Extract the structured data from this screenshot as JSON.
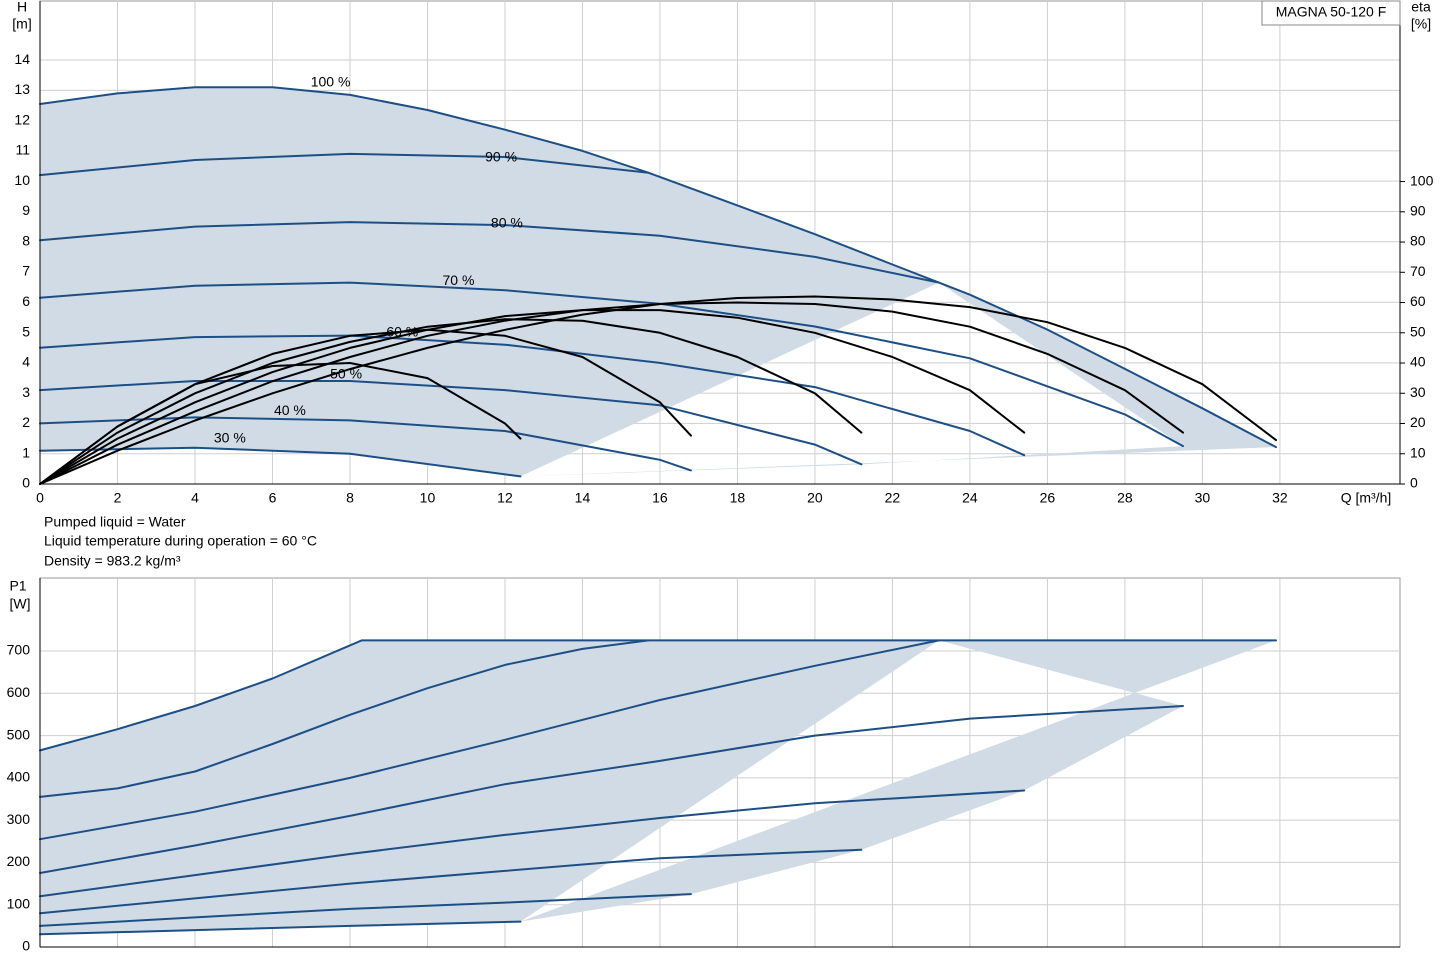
{
  "chart_data": [
    {
      "type": "line",
      "model_label": "MAGNA 50-120 F",
      "ylabel": "H",
      "yunit": "[m]",
      "y2label": "eta",
      "y2unit": "[%]",
      "xlabel": "Q [m³/h]",
      "notes": [
        "Pumped liquid = Water",
        "Liquid temperature during operation = 60 °C",
        "Density = 983.2 kg/m³"
      ],
      "xlim": [
        0,
        35.1
      ],
      "xticks": [
        0,
        2,
        4,
        6,
        8,
        10,
        12,
        14,
        16,
        18,
        20,
        22,
        24,
        26,
        28,
        30,
        32
      ],
      "ylim": [
        0,
        15.95
      ],
      "yticks": [
        0,
        1,
        2,
        3,
        4,
        5,
        6,
        7,
        8,
        9,
        10,
        11,
        12,
        13,
        14
      ],
      "y2lim": [
        0,
        159.7
      ],
      "y2ticks": [
        0,
        10,
        20,
        30,
        40,
        50,
        60,
        70,
        80,
        90,
        100
      ],
      "grid": true,
      "fill_color": "#d0dbe6",
      "series": [
        {
          "name": "100 %",
          "color": "#1d4f86",
          "x": [
            0,
            2,
            4,
            6,
            8,
            10,
            12,
            14,
            15.7,
            18,
            20,
            22,
            23.2,
            24,
            26,
            28,
            30,
            31.9
          ],
          "values": [
            12.55,
            12.9,
            13.1,
            13.1,
            12.85,
            12.35,
            11.7,
            11.0,
            10.28,
            9.2,
            8.25,
            7.25,
            6.65,
            6.25,
            5.1,
            3.8,
            2.5,
            1.22
          ]
        },
        {
          "name": "90 %",
          "color": "#1d4f86",
          "x": [
            0,
            4,
            8,
            12,
            15.7
          ],
          "values": [
            10.2,
            10.7,
            10.9,
            10.8,
            10.28
          ]
        },
        {
          "name": "80 %",
          "color": "#1d4f86",
          "x": [
            0,
            4,
            8,
            12,
            16,
            20,
            23.2
          ],
          "values": [
            8.05,
            8.5,
            8.65,
            8.55,
            8.2,
            7.5,
            6.65
          ]
        },
        {
          "name": "70 %",
          "color": "#1d4f86",
          "x": [
            0,
            4,
            8,
            12,
            16,
            20,
            24,
            28,
            29.5
          ],
          "values": [
            6.15,
            6.55,
            6.65,
            6.4,
            5.95,
            5.2,
            4.15,
            2.3,
            1.25
          ]
        },
        {
          "name": "60 %",
          "color": "#1d4f86",
          "x": [
            0,
            4,
            8,
            12,
            16,
            20,
            24,
            25.4
          ],
          "values": [
            4.5,
            4.85,
            4.9,
            4.6,
            4.0,
            3.2,
            1.75,
            0.95
          ]
        },
        {
          "name": "50 %",
          "color": "#1d4f86",
          "x": [
            0,
            4,
            8,
            12,
            16,
            20,
            21.2
          ],
          "values": [
            3.1,
            3.4,
            3.4,
            3.1,
            2.6,
            1.3,
            0.65
          ]
        },
        {
          "name": "40 %",
          "color": "#1d4f86",
          "x": [
            0,
            4,
            8,
            12,
            16,
            16.8
          ],
          "values": [
            2.0,
            2.2,
            2.1,
            1.75,
            0.8,
            0.45
          ]
        },
        {
          "name": "30 %",
          "color": "#1d4f86",
          "x": [
            0,
            4,
            8,
            12.4
          ],
          "values": [
            1.1,
            1.2,
            1.0,
            0.25
          ]
        },
        {
          "color": "#000000",
          "axis": "y2",
          "x": [
            0,
            2,
            4,
            6,
            8,
            10,
            12,
            14,
            16,
            18,
            20,
            22,
            24,
            26,
            28,
            30,
            31.9
          ],
          "values": [
            0,
            11,
            21,
            30,
            38,
            45,
            51,
            56,
            59.5,
            61.5,
            62,
            61,
            58.5,
            53.5,
            45,
            33,
            14.5
          ]
        },
        {
          "color": "#000000",
          "axis": "y2",
          "x": [
            0,
            2,
            4,
            6,
            8,
            10,
            12,
            14,
            16,
            18,
            20,
            22,
            24,
            26,
            28,
            29.5
          ],
          "values": [
            0,
            13,
            24,
            34,
            42,
            49,
            54,
            57.5,
            59.5,
            60,
            59.5,
            57,
            52,
            43,
            31,
            17
          ]
        },
        {
          "color": "#000000",
          "axis": "y2",
          "x": [
            0,
            2,
            4,
            6,
            8,
            10,
            12,
            14,
            16,
            18,
            20,
            22,
            24,
            25.4
          ],
          "values": [
            0,
            15,
            27,
            37,
            45,
            51,
            55.5,
            57.5,
            57.5,
            55,
            50,
            42,
            31,
            17
          ]
        },
        {
          "color": "#000000",
          "axis": "y2",
          "x": [
            0,
            2,
            4,
            6,
            8,
            10,
            12,
            14,
            16,
            18,
            20,
            21.2
          ],
          "values": [
            0,
            17,
            30,
            40,
            47,
            52,
            54.5,
            54,
            50,
            42,
            30,
            17
          ]
        },
        {
          "color": "#000000",
          "axis": "y2",
          "x": [
            0,
            2,
            4,
            6,
            8,
            10,
            12,
            14,
            16,
            16.8
          ],
          "values": [
            0,
            19,
            33,
            43,
            49,
            51,
            49,
            42,
            27,
            16
          ]
        },
        {
          "color": "#000000",
          "axis": "y2",
          "x": [
            0,
            2,
            4,
            6,
            8,
            10,
            12,
            12.4
          ],
          "values": [
            0,
            19,
            33,
            39,
            40,
            35,
            20,
            15
          ]
        }
      ]
    },
    {
      "type": "line",
      "ylabel": "P1",
      "yunit": "[W]",
      "xlim": [
        0,
        35.1
      ],
      "ylim": [
        0,
        872.6
      ],
      "yticks": [
        0,
        100,
        200,
        300,
        400,
        500,
        600,
        700
      ],
      "grid": true,
      "fill_color": "#d0dbe6",
      "series": [
        {
          "color": "#1d4f86",
          "x": [
            0,
            2,
            4,
            6,
            8.3,
            12,
            16,
            20,
            24,
            28,
            31.9
          ],
          "values": [
            465,
            515,
            570,
            635,
            725,
            725,
            725,
            725,
            725,
            725,
            725
          ]
        },
        {
          "color": "#1d4f86",
          "x": [
            0,
            2,
            4,
            6,
            8,
            10,
            12,
            14,
            15.7
          ],
          "values": [
            355,
            375,
            415,
            480,
            549,
            612,
            667,
            705,
            725
          ]
        },
        {
          "color": "#1d4f86",
          "x": [
            0,
            4,
            8,
            12,
            16,
            20,
            23.2
          ],
          "values": [
            255,
            320,
            400,
            490,
            584,
            665,
            725
          ]
        },
        {
          "color": "#1d4f86",
          "x": [
            0,
            4,
            8,
            12,
            16,
            20,
            24,
            29.5
          ],
          "values": [
            175,
            240,
            310,
            385,
            440,
            500,
            540,
            570
          ]
        },
        {
          "color": "#1d4f86",
          "x": [
            0,
            4,
            8,
            12,
            16,
            20,
            25.4
          ],
          "values": [
            120,
            170,
            220,
            265,
            305,
            340,
            370
          ]
        },
        {
          "color": "#1d4f86",
          "x": [
            0,
            4,
            8,
            12,
            16,
            21.2
          ],
          "values": [
            80,
            115,
            150,
            180,
            210,
            230
          ]
        },
        {
          "color": "#1d4f86",
          "x": [
            0,
            4,
            8,
            12,
            16.8
          ],
          "values": [
            50,
            70,
            90,
            105,
            125
          ]
        },
        {
          "color": "#1d4f86",
          "x": [
            0,
            4,
            8,
            12.4
          ],
          "values": [
            30,
            40,
            50,
            60
          ]
        }
      ]
    }
  ]
}
